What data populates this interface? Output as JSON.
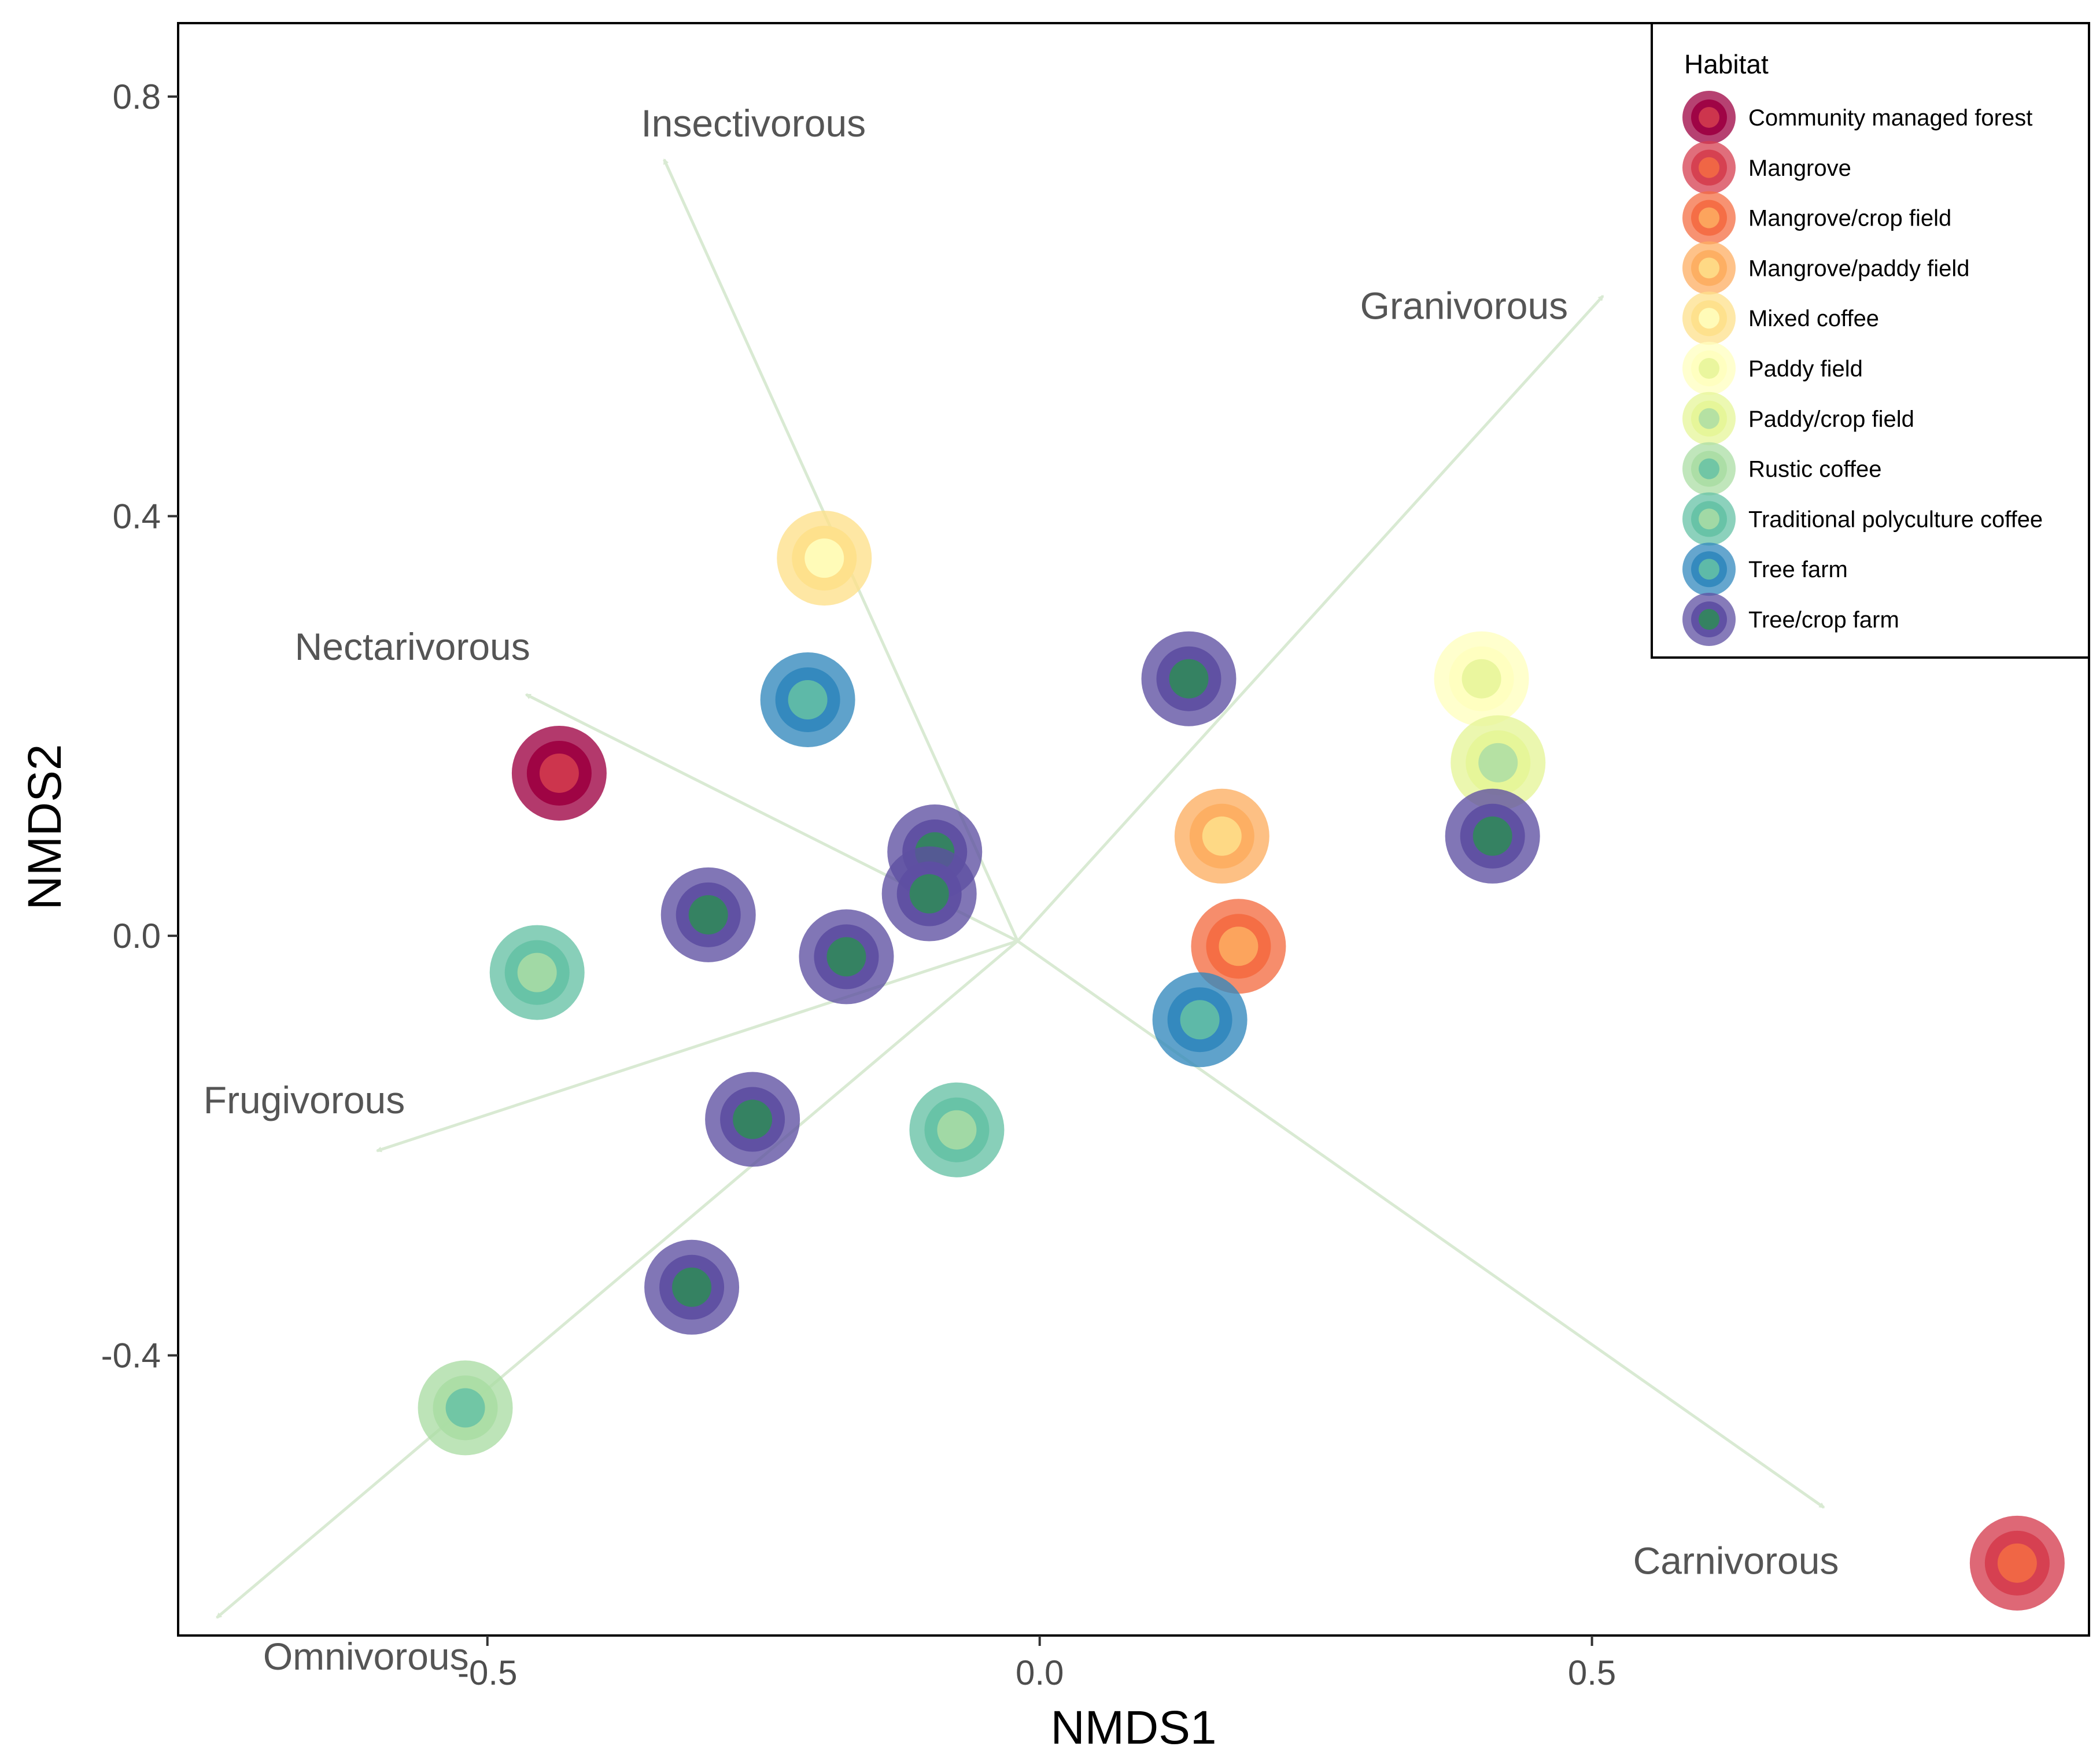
{
  "chart_data": {
    "type": "scatter",
    "xlabel": "NMDS1",
    "ylabel": "NMDS2",
    "xlim": [
      -0.78,
      0.95
    ],
    "ylim": [
      -0.667,
      0.87
    ],
    "x_ticks": [
      -0.5,
      0.0,
      0.5
    ],
    "x_tick_labels": [
      "-0.5",
      "0.0",
      "0.5"
    ],
    "y_ticks": [
      0.8,
      0.4,
      0.0,
      -0.4
    ],
    "y_tick_labels": [
      "0.8",
      "0.4",
      "0.0",
      "-0.4"
    ],
    "grid": false,
    "legend": {
      "title": "Habitat",
      "placement": "top-right",
      "entries": [
        {
          "label": "Community managed forest",
          "outer": "#9e0142",
          "inner": "#d53e4f"
        },
        {
          "label": "Mangrove",
          "outer": "#d53e4f",
          "inner": "#f46d43"
        },
        {
          "label": "Mangrove/crop field",
          "outer": "#f46d43",
          "inner": "#fdae61"
        },
        {
          "label": "Mangrove/paddy field",
          "outer": "#fdae61",
          "inner": "#fee08b"
        },
        {
          "label": "Mixed coffee",
          "outer": "#fee08b",
          "inner": "#ffffbf"
        },
        {
          "label": "Paddy field",
          "outer": "#ffffbf",
          "inner": "#e6f598"
        },
        {
          "label": "Paddy/crop field",
          "outer": "#e6f598",
          "inner": "#abdda4"
        },
        {
          "label": "Rustic coffee",
          "outer": "#abdda4",
          "inner": "#66c2a5"
        },
        {
          "label": "Traditional polyculture coffee",
          "outer": "#66c2a5",
          "inner": "#abdda4"
        },
        {
          "label": "Tree farm",
          "outer": "#3288bd",
          "inner": "#66c2a5"
        },
        {
          "label": "Tree/crop farm",
          "outer": "#5e4fa2",
          "inner": "#2e8b57"
        }
      ]
    },
    "points": [
      {
        "habitat": "Community managed forest",
        "x": -0.435,
        "y": 0.155
      },
      {
        "habitat": "Mangrove",
        "x": 0.885,
        "y": -0.598
      },
      {
        "habitat": "Mangrove/crop field",
        "x": 0.18,
        "y": -0.01
      },
      {
        "habitat": "Mangrove/paddy field",
        "x": 0.165,
        "y": 0.095
      },
      {
        "habitat": "Mixed coffee",
        "x": -0.195,
        "y": 0.36
      },
      {
        "habitat": "Paddy field",
        "x": 0.4,
        "y": 0.245
      },
      {
        "habitat": "Paddy/crop field",
        "x": 0.415,
        "y": 0.165
      },
      {
        "habitat": "Rustic coffee",
        "x": -0.52,
        "y": -0.45
      },
      {
        "habitat": "Traditional polyculture coffee",
        "x": -0.455,
        "y": -0.035
      },
      {
        "habitat": "Traditional polyculture coffee",
        "x": -0.075,
        "y": -0.185
      },
      {
        "habitat": "Tree farm",
        "x": -0.21,
        "y": 0.225
      },
      {
        "habitat": "Tree farm",
        "x": 0.145,
        "y": -0.08
      },
      {
        "habitat": "Tree/crop farm",
        "x": 0.135,
        "y": 0.245
      },
      {
        "habitat": "Tree/crop farm",
        "x": -0.095,
        "y": 0.08
      },
      {
        "habitat": "Tree/crop farm",
        "x": -0.1,
        "y": 0.04
      },
      {
        "habitat": "Tree/crop farm",
        "x": -0.3,
        "y": 0.02
      },
      {
        "habitat": "Tree/crop farm",
        "x": -0.175,
        "y": -0.02
      },
      {
        "habitat": "Tree/crop farm",
        "x": -0.26,
        "y": -0.175
      },
      {
        "habitat": "Tree/crop farm",
        "x": -0.315,
        "y": -0.335
      },
      {
        "habitat": "Tree/crop farm",
        "x": 0.41,
        "y": 0.095
      }
    ],
    "vectors": {
      "origin": [
        -0.02,
        -0.005
      ],
      "color": "#d9ead3",
      "items": [
        {
          "label": "Insectivorous",
          "x": -0.34,
          "y": 0.74
        },
        {
          "label": "Nectarivorous",
          "x": -0.465,
          "y": 0.23
        },
        {
          "label": "Granivorous",
          "x": 0.51,
          "y": 0.61
        },
        {
          "label": "Frugivorous",
          "x": -0.6,
          "y": -0.205
        },
        {
          "label": "Omnivorous",
          "x": -0.745,
          "y": -0.65
        },
        {
          "label": "Carnivorous",
          "x": 0.71,
          "y": -0.545
        }
      ]
    }
  }
}
